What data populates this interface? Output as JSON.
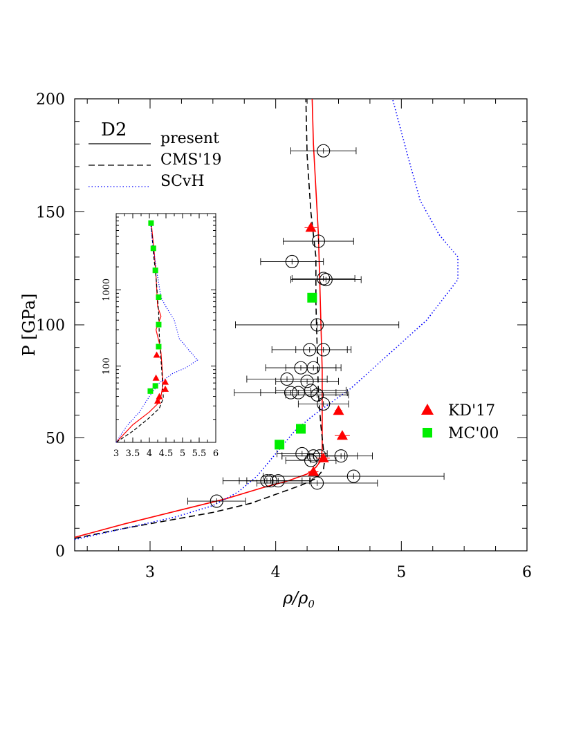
{
  "chart_data": {
    "type": "scatter",
    "panel_label": "D2",
    "xlabel": "ρ/ρ",
    "xlabel_sub": "0",
    "ylabel": "P [GPa]",
    "xlim": [
      2.4,
      6.0
    ],
    "ylim": [
      0,
      200
    ],
    "x_ticks": [
      3,
      4,
      5,
      6
    ],
    "y_ticks": [
      0,
      50,
      100,
      150,
      200
    ],
    "grid": false,
    "legend_lines": [
      {
        "label": "present",
        "style": "solid"
      },
      {
        "label": "CMS'19",
        "style": "dashed"
      },
      {
        "label": "SCvH",
        "style": "dotted"
      }
    ],
    "legend_markers": [
      {
        "label": "KD'17",
        "marker": "triangle",
        "color": "#ff0000"
      },
      {
        "label": "MC'00",
        "marker": "square",
        "color": "#00ee00"
      }
    ],
    "colors": {
      "present": "#ff0000",
      "cms19": "#000000",
      "scvh": "#0000ff",
      "kd17": "#ff0000",
      "mc00": "#00ee00",
      "exp": "#000000"
    },
    "series": [
      {
        "key": "present",
        "name": "present",
        "style": "solid",
        "points": [
          [
            2.4,
            6
          ],
          [
            2.8,
            12
          ],
          [
            3.2,
            17.5
          ],
          [
            3.6,
            23
          ],
          [
            3.9,
            28
          ],
          [
            4.1,
            31
          ],
          [
            4.25,
            34
          ],
          [
            4.32,
            37
          ],
          [
            4.36,
            40
          ],
          [
            4.37,
            45
          ],
          [
            4.37,
            55
          ],
          [
            4.37,
            65
          ],
          [
            4.37,
            80
          ],
          [
            4.36,
            100
          ],
          [
            4.35,
            120
          ],
          [
            4.34,
            140
          ],
          [
            4.32,
            160
          ],
          [
            4.3,
            180
          ],
          [
            4.29,
            200
          ]
        ]
      },
      {
        "key": "cms19",
        "name": "CMS'19",
        "style": "dashed",
        "points": [
          [
            2.4,
            5.5
          ],
          [
            2.8,
            10
          ],
          [
            3.2,
            14
          ],
          [
            3.5,
            17
          ],
          [
            3.8,
            21
          ],
          [
            4.0,
            25
          ],
          [
            4.2,
            29
          ],
          [
            4.32,
            32
          ],
          [
            4.38,
            36
          ],
          [
            4.39,
            40
          ],
          [
            4.38,
            45
          ],
          [
            4.36,
            55
          ],
          [
            4.34,
            70
          ],
          [
            4.33,
            90
          ],
          [
            4.32,
            110
          ],
          [
            4.32,
            130
          ],
          [
            4.28,
            150
          ],
          [
            4.25,
            175
          ],
          [
            4.24,
            200
          ]
        ]
      },
      {
        "key": "scvh",
        "name": "SCvH",
        "style": "dotted",
        "points": [
          [
            2.4,
            5
          ],
          [
            2.8,
            10
          ],
          [
            3.2,
            15
          ],
          [
            3.5,
            20
          ],
          [
            3.7,
            26
          ],
          [
            3.85,
            33
          ],
          [
            4.0,
            43
          ],
          [
            4.15,
            53
          ],
          [
            4.3,
            60
          ],
          [
            4.45,
            66
          ],
          [
            4.6,
            72
          ],
          [
            4.8,
            82
          ],
          [
            5.0,
            92
          ],
          [
            5.2,
            102
          ],
          [
            5.45,
            120
          ],
          [
            5.45,
            130
          ],
          [
            5.3,
            140
          ],
          [
            5.15,
            155
          ],
          [
            5.05,
            175
          ],
          [
            4.93,
            200
          ]
        ]
      }
    ],
    "exp_points": [
      {
        "x": 4.38,
        "y": 177,
        "xerr": 0.26
      },
      {
        "x": 4.34,
        "y": 137,
        "xerr": 0.28
      },
      {
        "x": 4.13,
        "y": 128,
        "xerr": 0.25
      },
      {
        "x": 4.38,
        "y": 120.5,
        "xerr": 0.25
      },
      {
        "x": 4.4,
        "y": 120,
        "xerr": 0.28
      },
      {
        "x": 4.33,
        "y": 100,
        "xerr": 0.65
      },
      {
        "x": 4.27,
        "y": 89,
        "xerr": 0.3
      },
      {
        "x": 4.38,
        "y": 89,
        "xerr": 0.22
      },
      {
        "x": 4.2,
        "y": 81,
        "xerr": 0.28
      },
      {
        "x": 4.3,
        "y": 81,
        "xerr": 0.22
      },
      {
        "x": 4.09,
        "y": 76,
        "xerr": 0.32
      },
      {
        "x": 4.25,
        "y": 75,
        "xerr": 0.25
      },
      {
        "x": 4.12,
        "y": 70,
        "xerr": 0.45
      },
      {
        "x": 4.18,
        "y": 70,
        "xerr": 0.3
      },
      {
        "x": 4.28,
        "y": 71,
        "xerr": 0.28
      },
      {
        "x": 4.33,
        "y": 69,
        "xerr": 0.25
      },
      {
        "x": 4.38,
        "y": 65,
        "xerr": 0.2
      },
      {
        "x": 4.21,
        "y": 43,
        "xerr": 0.2
      },
      {
        "x": 4.3,
        "y": 42,
        "xerr": 0.25
      },
      {
        "x": 4.35,
        "y": 42,
        "xerr": 0.3
      },
      {
        "x": 4.52,
        "y": 42,
        "xerr": 0.25
      },
      {
        "x": 4.28,
        "y": 40,
        "xerr": 0.2
      },
      {
        "x": 4.62,
        "y": 33,
        "xerr": 0.72
      },
      {
        "x": 3.93,
        "y": 31,
        "xerr": 0.35
      },
      {
        "x": 3.96,
        "y": 31,
        "xerr": 0.25
      },
      {
        "x": 4.02,
        "y": 31,
        "xerr": 0.25
      },
      {
        "x": 4.33,
        "y": 30,
        "xerr": 0.48
      },
      {
        "x": 3.53,
        "y": 22,
        "xerr": 0.23
      }
    ],
    "kd17": [
      {
        "x": 4.28,
        "y": 143,
        "xerr": 0.05
      },
      {
        "x": 4.5,
        "y": 62,
        "xerr": 0.03
      },
      {
        "x": 4.53,
        "y": 51,
        "xerr": 0.06
      },
      {
        "x": 4.38,
        "y": 41,
        "xerr": 0.05
      },
      {
        "x": 4.3,
        "y": 35,
        "xerr": 0.04
      }
    ],
    "mc00": [
      [
        4.29,
        112
      ],
      [
        4.2,
        54
      ],
      [
        4.03,
        47
      ]
    ],
    "inset": {
      "xlim": [
        3,
        6
      ],
      "ylim_log": [
        10,
        10000
      ],
      "x_ticks": [
        3,
        3.5,
        4,
        4.5,
        5,
        5.5,
        6
      ],
      "x_tick_labels": [
        "3",
        "3.5",
        "4",
        "4.5",
        "5",
        "5.5",
        "6"
      ],
      "y_tick_labels": [
        {
          "v": 100,
          "label": "100"
        },
        {
          "v": 1000,
          "label": "1000"
        }
      ],
      "series": [
        {
          "key": "present",
          "points": [
            [
              3,
              10
            ],
            [
              3.5,
              17
            ],
            [
              4,
              25
            ],
            [
              4.25,
              32
            ],
            [
              4.35,
              40
            ],
            [
              4.4,
              55
            ],
            [
              4.4,
              70
            ],
            [
              4.38,
              100
            ],
            [
              4.35,
              150
            ],
            [
              4.3,
              200
            ],
            [
              4.2,
              300
            ],
            [
              4.35,
              450
            ],
            [
              4.25,
              600
            ],
            [
              4.2,
              1500
            ],
            [
              4.15,
              3000
            ],
            [
              4.05,
              8000
            ]
          ]
        },
        {
          "key": "cms19",
          "points": [
            [
              3,
              10
            ],
            [
              3.5,
              14
            ],
            [
              4,
              21
            ],
            [
              4.3,
              28
            ],
            [
              4.42,
              38
            ],
            [
              4.4,
              55
            ],
            [
              4.38,
              80
            ],
            [
              4.35,
              120
            ],
            [
              4.3,
              250
            ],
            [
              4.28,
              500
            ],
            [
              4.2,
              1500
            ],
            [
              4.12,
              3000
            ],
            [
              4.05,
              8000
            ]
          ]
        },
        {
          "key": "scvh",
          "points": [
            [
              3,
              10
            ],
            [
              3.3,
              16
            ],
            [
              3.7,
              25
            ],
            [
              4,
              40
            ],
            [
              4.3,
              60
            ],
            [
              4.7,
              80
            ],
            [
              5.1,
              95
            ],
            [
              5.45,
              120
            ],
            [
              5.2,
              160
            ],
            [
              4.9,
              230
            ],
            [
              4.75,
              400
            ],
            [
              4.5,
              600
            ],
            [
              4.35,
              800
            ],
            [
              4.2,
              2000
            ],
            [
              4.1,
              4000
            ],
            [
              4.03,
              8000
            ]
          ]
        }
      ],
      "kd17": [
        [
          4.22,
          140
        ],
        [
          4.2,
          70
        ],
        [
          4.48,
          62
        ],
        [
          4.48,
          50
        ],
        [
          4.3,
          40
        ],
        [
          4.25,
          35
        ]
      ],
      "mc00": [
        [
          4.05,
          7500
        ],
        [
          4.12,
          3500
        ],
        [
          4.18,
          1800
        ],
        [
          4.28,
          800
        ],
        [
          4.28,
          350
        ],
        [
          4.28,
          180
        ],
        [
          4.18,
          55
        ],
        [
          4.03,
          47
        ]
      ]
    }
  }
}
